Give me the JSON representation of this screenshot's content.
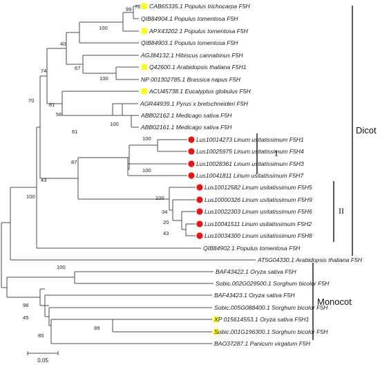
{
  "tree": {
    "leaves": [
      {
        "label": "CAB65335.1 Populus trichocarpa F5H",
        "marker": "square"
      },
      {
        "label": "QIB84904.1 Populus tomentosa F5H",
        "marker": "none"
      },
      {
        "label": "APX43202.1 Populus tomentosa F5H",
        "marker": "square"
      },
      {
        "label": "QIB84903.1 Populus tomentosa F5H",
        "marker": "none"
      },
      {
        "label": "AGJ84132.1 Hibiscus cannabinus F5H",
        "marker": "none"
      },
      {
        "label": "Q42600.1 Arabidopsis thaliana F5H1",
        "marker": "square"
      },
      {
        "label": "NP 001302785.1 Brassica napus F5H",
        "marker": "none"
      },
      {
        "label": "ACU45738.1 Eucalyptus globulus F5H",
        "marker": "square"
      },
      {
        "label": "AGR44939.1 Pyrus x bretschneideri F5H",
        "marker": "none"
      },
      {
        "label": "ABB02162.1 Medicago sativa F5H",
        "marker": "none"
      },
      {
        "label": "ABB02161.1 Medicago sativa F5H",
        "marker": "none"
      },
      {
        "label": "Lus10014273 Linum usitatissimum F5H1",
        "marker": "circle"
      },
      {
        "label": "Lus10025975 Linum usitatissimum F5H4",
        "marker": "circle"
      },
      {
        "label": "Lus10028361 Linum usitatissimum F5H3",
        "marker": "circle"
      },
      {
        "label": "Lus10041811 Linum usitatissimum F5H7",
        "marker": "circle"
      },
      {
        "label": "Lus10012582 Linum usitatissimum F5H5",
        "marker": "circle"
      },
      {
        "label": "Lus10000326 Linum usitatissimum F5H9",
        "marker": "circle"
      },
      {
        "label": "Lus10022303 Linum usitatissimum F5H6",
        "marker": "circle"
      },
      {
        "label": "Lus10041511 Linum usitatissimum F5H2",
        "marker": "circle"
      },
      {
        "label": "Lus10034300 Linum usitatissimum F5H8",
        "marker": "circle"
      },
      {
        "label": "QIB84902.1 Populus tomentosa F5H",
        "marker": "none"
      },
      {
        "label": "AT5G04330.1 Arabidopsis thaliana F5H",
        "marker": "none"
      },
      {
        "label": "BAF43422.1 Oryza sativa F5H",
        "marker": "none"
      },
      {
        "label": "Sobic.002G029500.1 Sorghum bicolor F5H",
        "marker": "none"
      },
      {
        "label": "BAF43423.1 Oryza sativa F5H",
        "marker": "none"
      },
      {
        "label": "Sobic.005G088400.1 Sorghum bicolor F5H",
        "marker": "none"
      },
      {
        "label": "XP 015614553.1 Oryza sativa F5H1",
        "marker": "square"
      },
      {
        "label": "Sobic.001G196300.1 Sorghum bicolor F5H",
        "marker": "square"
      },
      {
        "label": "BAO37287.1 Panicum virgatum F5H",
        "marker": "none"
      }
    ],
    "bootstrap_values": [
      "99",
      "72",
      "100",
      "40",
      "67",
      "100",
      "74",
      "81",
      "56",
      "100",
      "70",
      "100",
      "61",
      "100",
      "87",
      "100",
      "34",
      "20",
      "43",
      "43",
      "100",
      "100",
      "96",
      "45",
      "89",
      "85"
    ]
  },
  "groups": {
    "dicot": "Dicot",
    "monocot": "Monocot",
    "subgroup_1": "I",
    "subgroup_2": "II"
  },
  "scale_bar": {
    "label": "0.05"
  },
  "colors": {
    "square": "#ffff00",
    "circle": "#ee1111",
    "branch": "#4a4a4a"
  }
}
